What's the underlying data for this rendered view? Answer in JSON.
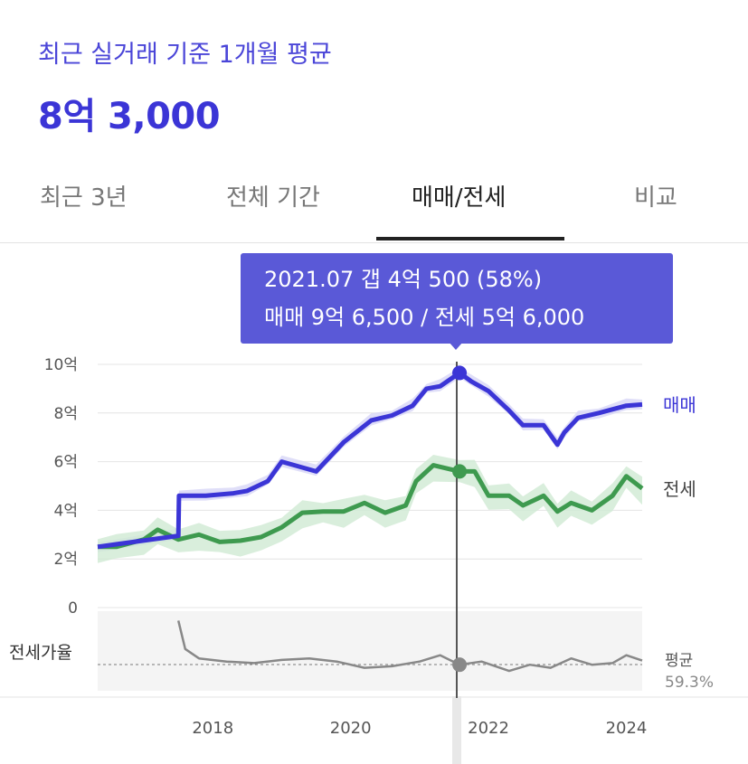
{
  "header": {
    "subtitle": "최근 실거래 기준 1개월 평균",
    "price": "8억 3,000"
  },
  "tabs": [
    {
      "label": "최근 3년",
      "active": false
    },
    {
      "label": "전체 기간",
      "active": false
    },
    {
      "label": "매매/전세",
      "active": true
    },
    {
      "label": "비교",
      "active": false
    }
  ],
  "tooltip": {
    "line1": "2021.07  갭 4억 500 (58%)",
    "line2": "매매 9억 6,500 / 전세 5억 6,000"
  },
  "colors": {
    "sale": "#3b35d6",
    "jeonse": "#3e9a4f",
    "ratio": "#888888",
    "accent": "#5a59d7"
  },
  "chart_data": {
    "type": "line",
    "x_ticks": [
      "2018",
      "2020",
      "2022",
      "2024"
    ],
    "y_ticks": [
      "10억",
      "8억",
      "6억",
      "4억",
      "2억",
      "0"
    ],
    "ylim": [
      0,
      10
    ],
    "series": [
      {
        "name": "매매",
        "x": [
          2016.33,
          2017.5,
          2017.51,
          2017.9,
          2018.3,
          2018.5,
          2018.8,
          2019.0,
          2019.5,
          2019.9,
          2020.3,
          2020.6,
          2020.9,
          2021.1,
          2021.3,
          2021.58,
          2021.75,
          2022.0,
          2022.3,
          2022.5,
          2022.8,
          2023.0,
          2023.1,
          2023.3,
          2023.6,
          2024.0,
          2024.23
        ],
        "values": [
          2.5,
          2.95,
          4.6,
          4.6,
          4.7,
          4.8,
          5.2,
          6.0,
          5.6,
          6.8,
          7.7,
          7.9,
          8.3,
          9.0,
          9.1,
          9.65,
          9.3,
          8.9,
          8.1,
          7.5,
          7.5,
          6.7,
          7.2,
          7.8,
          8.0,
          8.3,
          8.35
        ]
      },
      {
        "name": "전세",
        "x": [
          2016.33,
          2016.6,
          2017.0,
          2017.2,
          2017.5,
          2017.8,
          2018.1,
          2018.4,
          2018.7,
          2019.0,
          2019.3,
          2019.6,
          2019.9,
          2020.2,
          2020.5,
          2020.8,
          2020.95,
          2021.2,
          2021.58,
          2021.8,
          2022.0,
          2022.3,
          2022.5,
          2022.8,
          2023.0,
          2023.2,
          2023.5,
          2023.8,
          2024.0,
          2024.23
        ],
        "values": [
          2.5,
          2.5,
          2.8,
          3.2,
          2.8,
          3.0,
          2.7,
          2.75,
          2.9,
          3.3,
          3.9,
          3.95,
          3.95,
          4.3,
          3.9,
          4.2,
          5.2,
          5.85,
          5.6,
          5.6,
          4.6,
          4.6,
          4.2,
          4.6,
          3.95,
          4.3,
          4.0,
          4.6,
          5.4,
          4.9
        ]
      },
      {
        "name": "전세가율",
        "x": [
          2017.5,
          2017.6,
          2017.8,
          2018.2,
          2018.6,
          2019.0,
          2019.4,
          2019.8,
          2020.2,
          2020.6,
          2021.0,
          2021.3,
          2021.58,
          2021.9,
          2022.3,
          2022.6,
          2022.9,
          2023.2,
          2023.5,
          2023.8,
          2024.0,
          2024.23
        ],
        "values": [
          72,
          63,
          60,
          59,
          58.5,
          59.5,
          60,
          59,
          57,
          57.5,
          59,
          61,
          58,
          59,
          56,
          58,
          57,
          60,
          58,
          58.5,
          61,
          59.3
        ]
      }
    ],
    "series_labels": [
      "매매",
      "전세"
    ],
    "ratio_label": "전세가율",
    "average": {
      "label": "평균",
      "value": "59.3%"
    },
    "cursor": {
      "x": 2021.58,
      "sale": 9.65,
      "jeonse": 5.6,
      "ratio": 58
    }
  }
}
